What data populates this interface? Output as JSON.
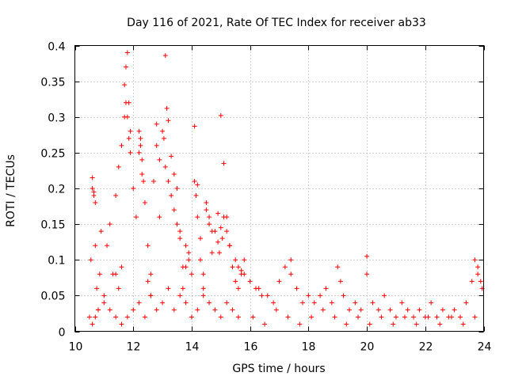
{
  "chart_data": {
    "type": "scatter",
    "title": "Day 116 of 2021, Rate Of TEC Index for receiver ab33",
    "xlabel": "GPS time / hours",
    "ylabel": "ROTI / TECUs",
    "xlim": [
      10,
      24
    ],
    "ylim": [
      0,
      0.4
    ],
    "x_ticks": [
      10,
      12,
      14,
      16,
      18,
      20,
      22,
      24
    ],
    "y_ticks": [
      0,
      0.05,
      0.1,
      0.15,
      0.2,
      0.25,
      0.3,
      0.35,
      0.4
    ],
    "x_tick_labels": [
      "10",
      "12",
      "14",
      "16",
      "18",
      "20",
      "22",
      "24"
    ],
    "y_tick_labels": [
      "0",
      "0.05",
      "0.1",
      "0.15",
      "0.2",
      "0.25",
      "0.3",
      "0.35",
      "0.4"
    ],
    "grid": true,
    "marker": "plus",
    "color": "#ff0000",
    "series": [
      {
        "x": [
          10.5,
          10.55,
          10.6,
          10.65,
          10.7,
          10.75,
          10.8,
          10.85,
          10.9,
          11.0,
          11.1,
          11.2,
          11.3,
          11.4,
          11.5,
          11.6,
          11.7,
          11.75,
          11.8,
          11.85,
          11.9,
          12.0,
          12.1,
          12.2,
          12.25,
          12.3,
          12.4,
          12.5,
          12.6,
          12.7,
          12.8,
          12.9,
          13.0,
          13.1,
          13.15,
          13.2,
          13.3,
          13.4,
          13.5,
          13.6,
          13.7,
          13.8,
          13.9,
          14.0,
          14.1,
          14.2,
          14.3,
          14.4,
          14.5,
          14.6,
          14.7,
          14.8,
          14.9,
          15.0,
          15.1,
          15.2,
          15.3,
          15.4,
          15.5,
          15.6,
          15.7,
          15.8,
          16.0,
          16.2,
          16.4,
          16.6,
          16.8,
          17.0,
          17.2,
          17.4,
          17.6,
          17.8,
          18.0,
          18.2,
          18.4,
          18.6,
          18.8,
          19.0,
          19.2,
          19.4,
          19.6,
          19.8,
          20.0,
          20.2,
          20.4,
          20.6,
          20.8,
          21.0,
          21.2,
          21.4,
          21.6,
          21.8,
          22.0,
          22.2,
          22.4,
          22.6,
          22.8,
          23.0,
          23.2,
          23.4,
          23.6,
          23.8,
          23.95,
          10.6,
          10.7,
          10.8,
          11.0,
          11.2,
          11.4,
          11.6,
          11.8,
          12.0,
          12.2,
          12.4,
          12.6,
          12.8,
          13.0,
          13.2,
          13.4,
          13.6,
          13.8,
          14.0,
          14.2,
          14.4,
          14.6,
          14.8,
          15.0,
          15.2,
          15.4,
          15.6,
          16.1,
          16.5,
          16.9,
          17.3,
          17.7,
          18.1,
          18.5,
          18.9,
          19.3,
          19.7,
          20.1,
          20.5,
          20.9,
          21.3,
          21.7,
          22.1,
          22.5,
          22.9,
          23.3,
          23.7,
          10.6,
          10.65,
          10.7,
          11.7,
          11.75,
          11.8,
          11.85,
          11.9,
          12.2,
          12.25,
          12.3,
          12.35,
          12.8,
          12.9,
          13.05,
          13.1,
          13.2,
          13.3,
          13.4,
          13.5,
          13.6,
          14.1,
          14.15,
          14.2,
          14.5,
          14.6,
          14.7,
          14.9,
          14.95,
          15.0,
          15.05,
          15.1,
          15.2,
          15.3,
          15.5,
          15.6,
          15.7,
          15.8,
          16.3,
          17.4,
          19.1,
          20.0,
          23.7,
          23.8,
          23.9,
          11.4,
          11.5,
          11.6,
          12.5,
          12.6,
          13.7,
          13.8,
          13.9,
          14.3,
          14.4
        ],
        "y": [
          0.02,
          0.1,
          0.2,
          0.19,
          0.12,
          0.06,
          0.03,
          0.08,
          0.14,
          0.05,
          0.12,
          0.15,
          0.08,
          0.19,
          0.23,
          0.26,
          0.3,
          0.37,
          0.39,
          0.32,
          0.28,
          0.2,
          0.16,
          0.25,
          0.27,
          0.22,
          0.18,
          0.12,
          0.08,
          0.21,
          0.29,
          0.16,
          0.28,
          0.386,
          0.312,
          0.295,
          0.245,
          0.22,
          0.2,
          0.14,
          0.09,
          0.12,
          0.1,
          0.08,
          0.287,
          0.205,
          0.13,
          0.06,
          0.17,
          0.15,
          0.11,
          0.14,
          0.165,
          0.302,
          0.235,
          0.16,
          0.12,
          0.09,
          0.07,
          0.06,
          0.08,
          0.1,
          0.07,
          0.06,
          0.05,
          0.05,
          0.04,
          0.07,
          0.09,
          0.1,
          0.06,
          0.04,
          0.05,
          0.04,
          0.05,
          0.06,
          0.04,
          0.09,
          0.05,
          0.03,
          0.04,
          0.03,
          0.105,
          0.04,
          0.03,
          0.05,
          0.03,
          0.02,
          0.04,
          0.03,
          0.02,
          0.03,
          0.02,
          0.04,
          0.02,
          0.03,
          0.02,
          0.03,
          0.02,
          0.04,
          0.07,
          0.09,
          0.06,
          0.01,
          0.02,
          0.03,
          0.04,
          0.03,
          0.02,
          0.01,
          0.02,
          0.03,
          0.04,
          0.02,
          0.05,
          0.03,
          0.04,
          0.06,
          0.03,
          0.05,
          0.04,
          0.02,
          0.03,
          0.05,
          0.04,
          0.03,
          0.02,
          0.04,
          0.03,
          0.02,
          0.02,
          0.01,
          0.03,
          0.02,
          0.01,
          0.02,
          0.03,
          0.02,
          0.01,
          0.02,
          0.01,
          0.02,
          0.01,
          0.02,
          0.01,
          0.02,
          0.01,
          0.02,
          0.01,
          0.02,
          0.215,
          0.195,
          0.18,
          0.345,
          0.32,
          0.3,
          0.27,
          0.25,
          0.28,
          0.26,
          0.24,
          0.21,
          0.26,
          0.24,
          0.27,
          0.23,
          0.21,
          0.19,
          0.17,
          0.15,
          0.13,
          0.21,
          0.19,
          0.16,
          0.18,
          0.16,
          0.14,
          0.125,
          0.11,
          0.145,
          0.13,
          0.16,
          0.14,
          0.12,
          0.1,
          0.09,
          0.085,
          0.08,
          0.06,
          0.08,
          0.07,
          0.08,
          0.1,
          0.08,
          0.07,
          0.08,
          0.06,
          0.09,
          0.07,
          0.05,
          0.06,
          0.09,
          0.11,
          0.1,
          0.08
        ]
      }
    ]
  }
}
